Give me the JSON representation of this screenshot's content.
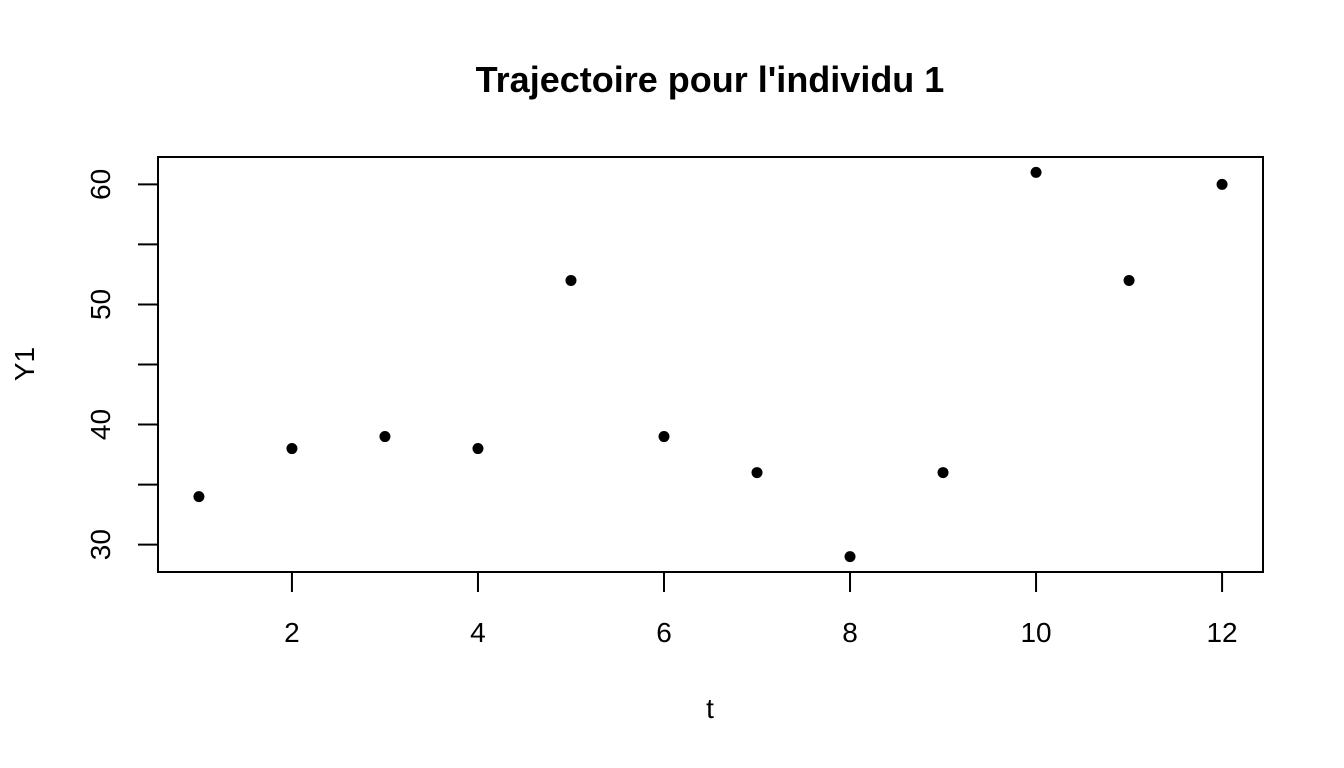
{
  "chart_data": {
    "type": "scatter",
    "title": "Trajectoire pour l'individu 1",
    "xlabel": "t",
    "ylabel": "Y1",
    "xlim": [
      0.56,
      12.44
    ],
    "ylim": [
      27.72,
      62.28
    ],
    "x_ticks": [
      2,
      4,
      6,
      8,
      10,
      12
    ],
    "x_tick_labels": [
      "2",
      "4",
      "6",
      "8",
      "10",
      "12"
    ],
    "y_ticks": [
      30,
      35,
      40,
      45,
      50,
      55,
      60
    ],
    "y_tick_labels": [
      "30",
      "",
      "40",
      "",
      "50",
      "",
      "60"
    ],
    "grid": false,
    "point_color": "#000000",
    "series": [
      {
        "x": [
          1,
          2,
          3,
          4,
          5,
          6,
          7,
          8,
          9,
          10,
          11,
          12
        ],
        "y": [
          34,
          38,
          39,
          38,
          52,
          39,
          36,
          29,
          36,
          61,
          52,
          60
        ]
      }
    ]
  }
}
